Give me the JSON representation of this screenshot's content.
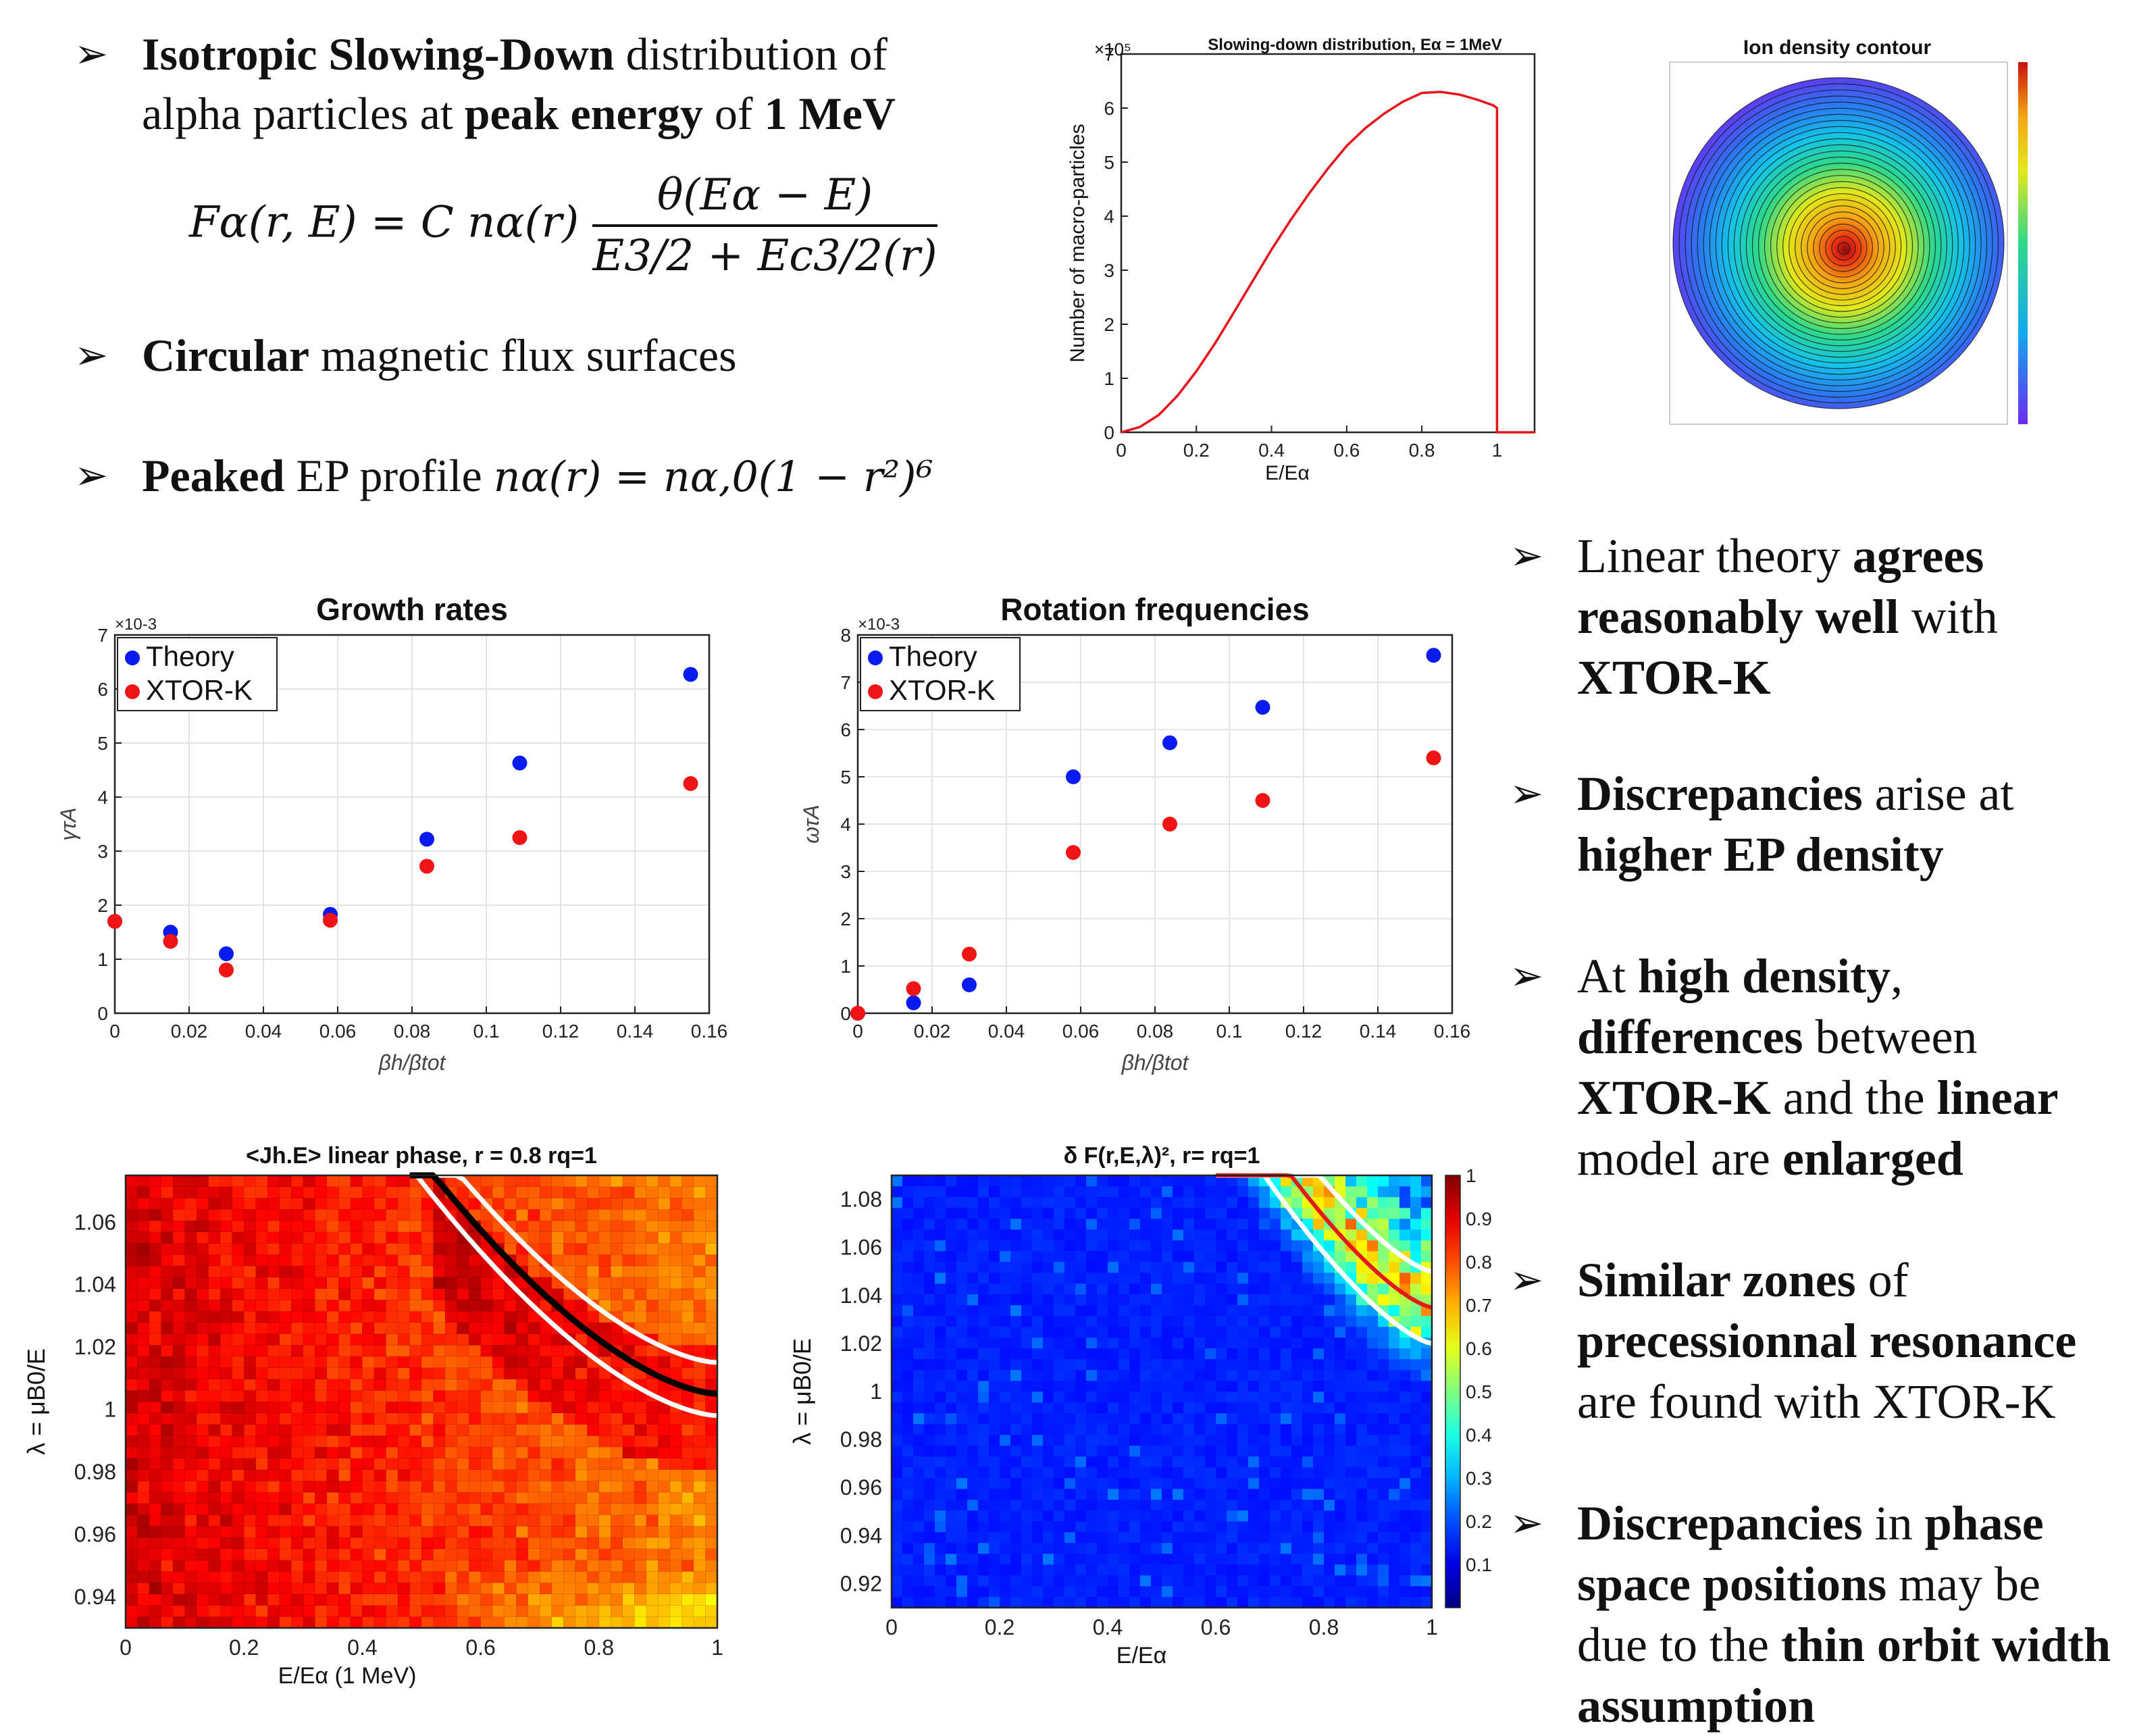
{
  "left_bullets": [
    {
      "parts": [
        {
          "t": "Isotropic Slowing-Down",
          "b": true
        },
        {
          "t": " distribution of",
          "b": false
        }
      ],
      "line2": [
        {
          "t": "alpha particles at ",
          "b": false
        },
        {
          "t": "peak energy",
          "b": true
        },
        {
          "t": " of ",
          "b": false
        },
        {
          "t": "1 MeV",
          "b": true
        }
      ]
    },
    {
      "parts": [
        {
          "t": "Circular",
          "b": true
        },
        {
          "t": " magnetic flux surfaces",
          "b": false
        }
      ]
    },
    {
      "parts": [
        {
          "t": "Peaked",
          "b": true
        },
        {
          "t": " EP profile ",
          "b": false
        }
      ]
    }
  ],
  "formula": {
    "lhs": "Fα(r, E) = C nα(r)",
    "numerator": "θ(Eα − E)",
    "denominator": "E3/2 + Ec3/2(r)"
  },
  "profile_formula": "nα(r) = nα,0(1 − r²)⁶",
  "right_bullets": [
    [
      {
        "t": "Linear theory ",
        "b": false
      },
      {
        "t": "agrees reasonably well",
        "b": true
      },
      {
        "t": " with ",
        "b": false
      },
      {
        "t": "XTOR-K",
        "b": true
      }
    ],
    [
      {
        "t": "Discrepancies",
        "b": true
      },
      {
        "t": " arise at ",
        "b": false
      },
      {
        "t": "higher EP density",
        "b": true
      }
    ],
    [
      {
        "t": "At ",
        "b": false
      },
      {
        "t": "high density",
        "b": true
      },
      {
        "t": ", ",
        "b": false
      },
      {
        "t": "differences",
        "b": true
      },
      {
        "t": " between ",
        "b": false
      },
      {
        "t": "XTOR-K",
        "b": true
      },
      {
        "t": " and the ",
        "b": false
      },
      {
        "t": "linear",
        "b": true
      },
      {
        "t": " model are ",
        "b": false
      },
      {
        "t": "enlarged",
        "b": true
      }
    ],
    [
      {
        "t": "Similar zones",
        "b": true
      },
      {
        "t": " of ",
        "b": false
      },
      {
        "t": "precessionnal resonance",
        "b": true
      },
      {
        "t": " are found with XTOR-K",
        "b": false
      }
    ],
    [
      {
        "t": "Discrepancies",
        "b": true
      },
      {
        "t": " in ",
        "b": false
      },
      {
        "t": "phase space positions",
        "b": true
      },
      {
        "t": " may be due to the ",
        "b": false
      },
      {
        "t": "thin orbit width assumption",
        "b": true
      }
    ]
  ],
  "chart_data": [
    {
      "id": "slowing_down",
      "type": "line",
      "title": "Slowing-down distribution, Eα = 1MeV",
      "xlabel": "E/Eα",
      "ylabel": "Number of macro-particles",
      "y_exponent": "×10⁵",
      "xlim": [
        0,
        1.1
      ],
      "ylim": [
        0,
        7
      ],
      "xticks": [
        "0",
        "0.2",
        "0.4",
        "0.6",
        "0.8",
        "1"
      ],
      "yticks": [
        "0",
        "1",
        "2",
        "3",
        "4",
        "5",
        "6",
        "7"
      ],
      "color": "#e8131b",
      "x": [
        0,
        0.05,
        0.1,
        0.15,
        0.2,
        0.25,
        0.3,
        0.35,
        0.4,
        0.45,
        0.5,
        0.55,
        0.6,
        0.65,
        0.7,
        0.75,
        0.8,
        0.85,
        0.9,
        0.95,
        0.99,
        1.0,
        1.0,
        1.1
      ],
      "y": [
        0,
        0.1,
        0.32,
        0.68,
        1.13,
        1.65,
        2.22,
        2.8,
        3.38,
        3.92,
        4.42,
        4.88,
        5.3,
        5.63,
        5.9,
        6.12,
        6.28,
        6.3,
        6.25,
        6.15,
        6.05,
        6.0,
        0,
        0
      ]
    },
    {
      "id": "ion_density",
      "type": "heatmap",
      "title": "Ion density contour"
    },
    {
      "id": "growth_rates",
      "type": "scatter",
      "title": "Growth rates",
      "xlabel": "βh/βtot",
      "ylabel": "γτA",
      "y_exponent": "×10-3",
      "xlim": [
        0,
        0.16
      ],
      "ylim": [
        0,
        7
      ],
      "xticks": [
        "0",
        "0.02",
        "0.04",
        "0.06",
        "0.08",
        "0.1",
        "0.12",
        "0.14",
        "0.16"
      ],
      "yticks": [
        "0",
        "1",
        "2",
        "3",
        "4",
        "5",
        "6",
        "7"
      ],
      "legend_loc": "top-left",
      "series": [
        {
          "name": "Theory",
          "color": "#0a1bf0",
          "x": [
            0.0,
            0.015,
            0.03,
            0.058,
            0.084,
            0.109,
            0.155
          ],
          "y": [
            1.7,
            1.5,
            1.1,
            1.83,
            3.22,
            4.63,
            6.27
          ]
        },
        {
          "name": "XTOR-K",
          "color": "#f01515",
          "x": [
            0.0,
            0.015,
            0.03,
            0.058,
            0.084,
            0.109,
            0.155
          ],
          "y": [
            1.7,
            1.33,
            0.8,
            1.72,
            2.72,
            3.25,
            4.25
          ]
        }
      ]
    },
    {
      "id": "rotation_freq",
      "type": "scatter",
      "title": "Rotation frequencies",
      "xlabel": "βh/βtot",
      "ylabel": "ωτA",
      "y_exponent": "×10-3",
      "xlim": [
        0,
        0.16
      ],
      "ylim": [
        0,
        8
      ],
      "xticks": [
        "0",
        "0.02",
        "0.04",
        "0.06",
        "0.08",
        "0.1",
        "0.12",
        "0.14",
        "0.16"
      ],
      "yticks": [
        "0",
        "1",
        "2",
        "3",
        "4",
        "5",
        "6",
        "7",
        "8"
      ],
      "legend_loc": "top-left",
      "series": [
        {
          "name": "Theory",
          "color": "#0a1bf0",
          "x": [
            0.0,
            0.015,
            0.03,
            0.058,
            0.084,
            0.109,
            0.155
          ],
          "y": [
            0.0,
            0.22,
            0.6,
            5.0,
            5.72,
            6.47,
            7.57
          ]
        },
        {
          "name": "XTOR-K",
          "color": "#f01515",
          "x": [
            0.0,
            0.015,
            0.03,
            0.058,
            0.084,
            0.109,
            0.155
          ],
          "y": [
            0.0,
            0.52,
            1.25,
            3.4,
            4.0,
            4.5,
            5.4
          ]
        }
      ]
    },
    {
      "id": "jhe_phase",
      "type": "heatmap",
      "title": "<Jh.E> linear phase, r = 0.8 rq=1",
      "xlabel": "E/Eα (1 MeV)",
      "ylabel": "λ = μB0/E",
      "xlim": [
        0,
        1
      ],
      "ylim": [
        0.93,
        1.075
      ],
      "xticks": [
        "0",
        "0.2",
        "0.4",
        "0.6",
        "0.8",
        "1"
      ],
      "yticks": [
        "0.94",
        "0.96",
        "0.98",
        "1",
        "1.02",
        "1.04",
        "1.06"
      ]
    },
    {
      "id": "deltaF",
      "type": "heatmap",
      "title": "δ F(r,E,λ)², r= rq=1",
      "xlabel": "E/Eα",
      "ylabel": "λ = μB0/E",
      "xlim": [
        0,
        1
      ],
      "ylim": [
        0.91,
        1.09
      ],
      "xticks": [
        "0",
        "0.2",
        "0.4",
        "0.6",
        "0.8",
        "1"
      ],
      "yticks": [
        "0.92",
        "0.94",
        "0.96",
        "0.98",
        "1",
        "1.02",
        "1.04",
        "1.06",
        "1.08"
      ],
      "colorbar_ticks": [
        "0.1",
        "0.2",
        "0.3",
        "0.4",
        "0.5",
        "0.6",
        "0.7",
        "0.8",
        "0.9",
        "1"
      ]
    }
  ]
}
